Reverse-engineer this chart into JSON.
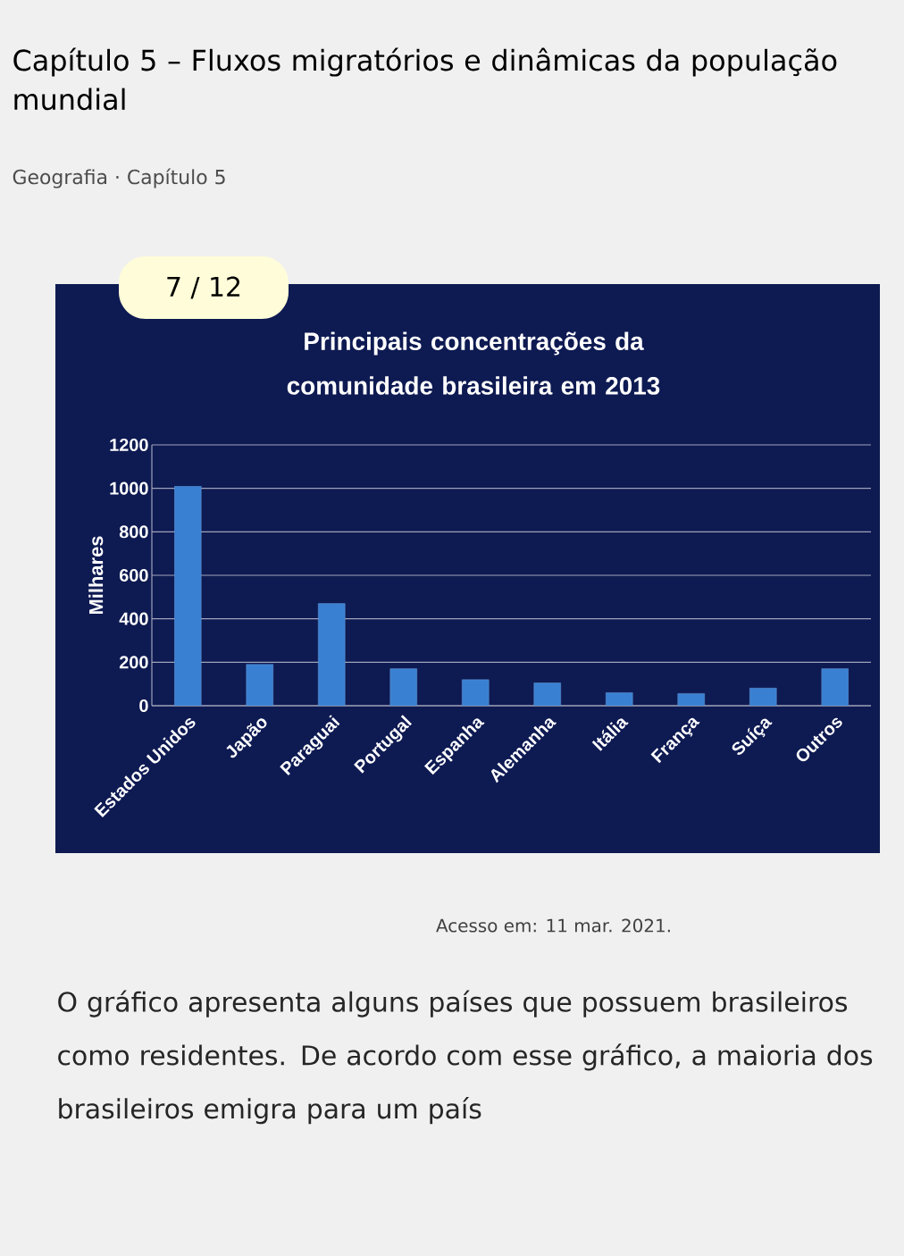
{
  "chart_data": {
    "type": "bar",
    "title": "Principais concentrações da comunidade brasileira em 2013",
    "ylabel": "Milhares",
    "categories": [
      "Estados Unidos",
      "Japão",
      "Paraguai",
      "Portugal",
      "Espanha",
      "Alemanha",
      "Itália",
      "França",
      "Suíça",
      "Outros"
    ],
    "values": [
      1010,
      190,
      470,
      170,
      120,
      105,
      60,
      56,
      81,
      170
    ],
    "color": "#3a80d2",
    "ylim": [
      0,
      1200
    ],
    "yticks": [
      0,
      200,
      400,
      600,
      800,
      1000,
      1200
    ],
    "grid": "y",
    "annotations": [
      "Capítulo 5 – Fluxos migratórios e dinâmicas da população mundial",
      "Geografia · Capítulo 5",
      "7 / 12",
      "Acesso em: 11 mar. 2021.",
      "O gráfico apresenta alguns países que possuem brasileiros como residentes. De acordo com esse gráfico, a maioria dos brasileiros emigra para um país"
    ]
  }
}
